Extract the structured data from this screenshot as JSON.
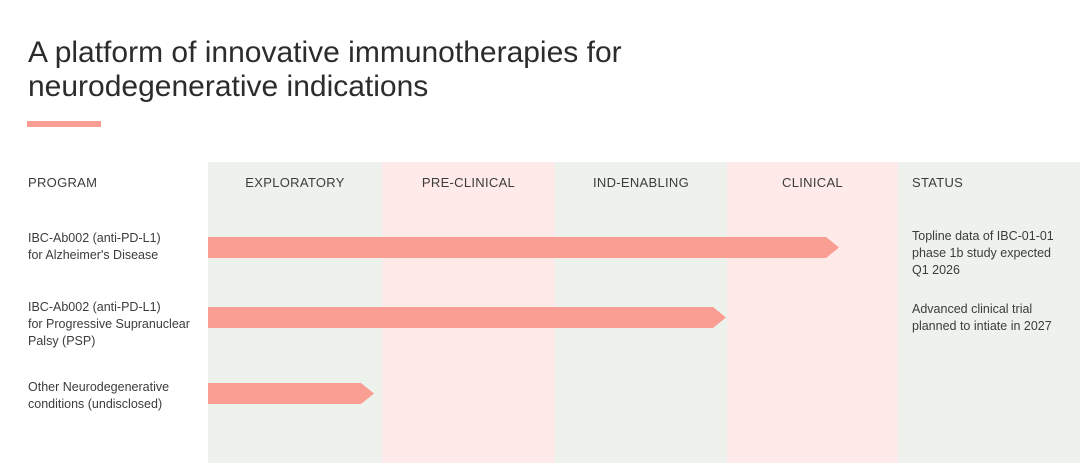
{
  "title": "A platform of innovative immunotherapies for\nneurodegenerative indications",
  "colors": {
    "accent": "#fa9d93",
    "green_column": "#eef2ec",
    "pink_column": "#fdeae9",
    "chart_text": "#3c3c3c",
    "title_text": "#2c2c2c"
  },
  "chart_data": {
    "type": "bar",
    "subtype": "pipeline-gantt",
    "title": "A platform of innovative immunotherapies for neurodegenerative indications",
    "program_column_header": "PROGRAM",
    "status_column_header": "STATUS",
    "stage_columns": [
      "EXPLORATORY",
      "PRE-CLINICAL",
      "IND-ENABLING",
      "CLINICAL"
    ],
    "legend": "none",
    "rows": [
      {
        "program": "IBC-Ab002 (anti-PD-L1)\nfor Alzheimer's Disease",
        "start_stage": 0,
        "end_stage": 3.66,
        "stage_reached": "CLINICAL",
        "status": "Topline data of IBC-01-01\nphase 1b study expected\nQ1 2026"
      },
      {
        "program": "IBC-Ab002 (anti-PD-L1)\nfor Progressive Supranuclear\nPalsy (PSP)",
        "start_stage": 0,
        "end_stage": 3.0,
        "stage_reached": "IND-ENABLING",
        "status": "Advanced clinical trial\nplanned to intiate in 2027"
      },
      {
        "program": "Other Neurodegenerative\nconditions (undisclosed)",
        "start_stage": 0,
        "end_stage": 0.96,
        "stage_reached": "EXPLORATORY",
        "status": ""
      }
    ]
  }
}
